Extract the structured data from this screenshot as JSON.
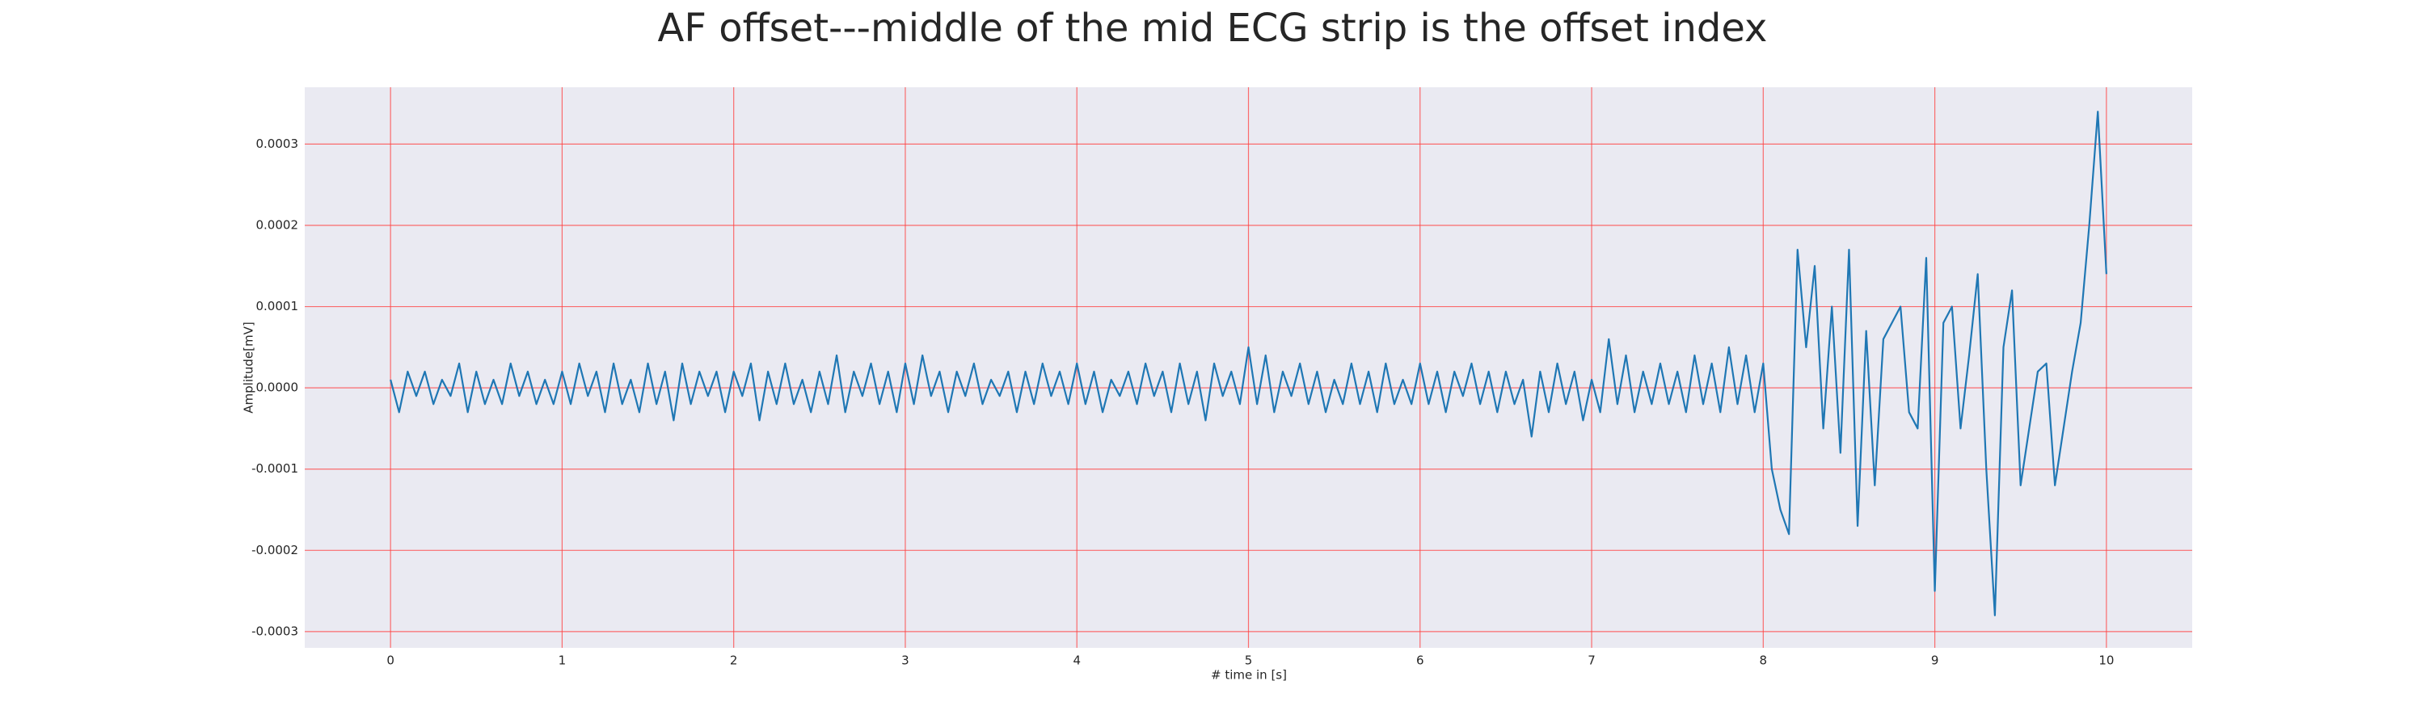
{
  "chart_data": {
    "type": "line",
    "title": "AF offset---middle of the mid ECG strip is the offset index",
    "xlabel": "# time in [s]",
    "ylabel": "Amplitude[mV]",
    "xlim": [
      -0.5,
      10.5
    ],
    "ylim": [
      -0.00032,
      0.00037
    ],
    "xticks": [
      0,
      1,
      2,
      3,
      4,
      5,
      6,
      7,
      8,
      9,
      10
    ],
    "yticks": [
      {
        "value": -0.0003,
        "label": "-0.0003"
      },
      {
        "value": -0.0002,
        "label": "-0.0002"
      },
      {
        "value": -0.0001,
        "label": "-0.0001"
      },
      {
        "value": 0,
        "label": "0.0000"
      },
      {
        "value": 0.0001,
        "label": "0.0001"
      },
      {
        "value": 0.0002,
        "label": "0.0002"
      },
      {
        "value": 0.0003,
        "label": "0.0003"
      }
    ],
    "grid": true,
    "grid_color": "#ff4040",
    "background": "#eaeaf2",
    "x": [
      0,
      0.05,
      0.1,
      0.15,
      0.2,
      0.25,
      0.3,
      0.35,
      0.4,
      0.45,
      0.5,
      0.55,
      0.6,
      0.65,
      0.7,
      0.75,
      0.8,
      0.85,
      0.9,
      0.95,
      1,
      1.05,
      1.1,
      1.15,
      1.2,
      1.25,
      1.3,
      1.35,
      1.4,
      1.45,
      1.5,
      1.55,
      1.6,
      1.65,
      1.7,
      1.75,
      1.8,
      1.85,
      1.9,
      1.95,
      2,
      2.05,
      2.1,
      2.15,
      2.2,
      2.25,
      2.3,
      2.35,
      2.4,
      2.45,
      2.5,
      2.55,
      2.6,
      2.65,
      2.7,
      2.75,
      2.8,
      2.85,
      2.9,
      2.95,
      3,
      3.05,
      3.1,
      3.15,
      3.2,
      3.25,
      3.3,
      3.35,
      3.4,
      3.45,
      3.5,
      3.55,
      3.6,
      3.65,
      3.7,
      3.75,
      3.8,
      3.85,
      3.9,
      3.95,
      4,
      4.05,
      4.1,
      4.15,
      4.2,
      4.25,
      4.3,
      4.35,
      4.4,
      4.45,
      4.5,
      4.55,
      4.6,
      4.65,
      4.7,
      4.75,
      4.8,
      4.85,
      4.9,
      4.95,
      5,
      5.05,
      5.1,
      5.15,
      5.2,
      5.25,
      5.3,
      5.35,
      5.4,
      5.45,
      5.5,
      5.55,
      5.6,
      5.65,
      5.7,
      5.75,
      5.8,
      5.85,
      5.9,
      5.95,
      6,
      6.05,
      6.1,
      6.15,
      6.2,
      6.25,
      6.3,
      6.35,
      6.4,
      6.45,
      6.5,
      6.55,
      6.6,
      6.65,
      6.7,
      6.75,
      6.8,
      6.85,
      6.9,
      6.95,
      7,
      7.05,
      7.1,
      7.15,
      7.2,
      7.25,
      7.3,
      7.35,
      7.4,
      7.45,
      7.5,
      7.55,
      7.6,
      7.65,
      7.7,
      7.75,
      7.8,
      7.85,
      7.9,
      7.95,
      8,
      8.05,
      8.1,
      8.15,
      8.2,
      8.25,
      8.3,
      8.35,
      8.4,
      8.45,
      8.5,
      8.55,
      8.6,
      8.65,
      8.7,
      8.75,
      8.8,
      8.85,
      8.9,
      8.95,
      9,
      9.05,
      9.1,
      9.15,
      9.2,
      9.25,
      9.3,
      9.35,
      9.4,
      9.45,
      9.5,
      9.55,
      9.6,
      9.65,
      9.7,
      9.75,
      9.8,
      9.85,
      9.9,
      9.95,
      10
    ],
    "series": [
      {
        "color": "#1f77b4",
        "values": [
          1e-05,
          -3e-05,
          2e-05,
          -1e-05,
          2e-05,
          -2e-05,
          1e-05,
          -1e-05,
          3e-05,
          -3e-05,
          2e-05,
          -2e-05,
          1e-05,
          -2e-05,
          3e-05,
          -1e-05,
          2e-05,
          -2e-05,
          1e-05,
          -2e-05,
          2e-05,
          -2e-05,
          3e-05,
          -1e-05,
          2e-05,
          -3e-05,
          3e-05,
          -2e-05,
          1e-05,
          -3e-05,
          3e-05,
          -2e-05,
          2e-05,
          -4e-05,
          3e-05,
          -2e-05,
          2e-05,
          -1e-05,
          2e-05,
          -3e-05,
          2e-05,
          -1e-05,
          3e-05,
          -4e-05,
          2e-05,
          -2e-05,
          3e-05,
          -2e-05,
          1e-05,
          -3e-05,
          2e-05,
          -2e-05,
          4e-05,
          -3e-05,
          2e-05,
          -1e-05,
          3e-05,
          -2e-05,
          2e-05,
          -3e-05,
          3e-05,
          -2e-05,
          4e-05,
          -1e-05,
          2e-05,
          -3e-05,
          2e-05,
          -1e-05,
          3e-05,
          -2e-05,
          1e-05,
          -1e-05,
          2e-05,
          -3e-05,
          2e-05,
          -2e-05,
          3e-05,
          -1e-05,
          2e-05,
          -2e-05,
          3e-05,
          -2e-05,
          2e-05,
          -3e-05,
          1e-05,
          -1e-05,
          2e-05,
          -2e-05,
          3e-05,
          -1e-05,
          2e-05,
          -3e-05,
          3e-05,
          -2e-05,
          2e-05,
          -4e-05,
          3e-05,
          -1e-05,
          2e-05,
          -2e-05,
          5e-05,
          -2e-05,
          4e-05,
          -3e-05,
          2e-05,
          -1e-05,
          3e-05,
          -2e-05,
          2e-05,
          -3e-05,
          1e-05,
          -2e-05,
          3e-05,
          -2e-05,
          2e-05,
          -3e-05,
          3e-05,
          -2e-05,
          1e-05,
          -2e-05,
          3e-05,
          -2e-05,
          2e-05,
          -3e-05,
          2e-05,
          -1e-05,
          3e-05,
          -2e-05,
          2e-05,
          -3e-05,
          2e-05,
          -2e-05,
          1e-05,
          -6e-05,
          2e-05,
          -3e-05,
          3e-05,
          -2e-05,
          2e-05,
          -4e-05,
          1e-05,
          -3e-05,
          6e-05,
          -2e-05,
          4e-05,
          -3e-05,
          2e-05,
          -2e-05,
          3e-05,
          -2e-05,
          2e-05,
          -3e-05,
          4e-05,
          -2e-05,
          3e-05,
          -3e-05,
          5e-05,
          -2e-05,
          4e-05,
          -3e-05,
          3e-05,
          -0.0001,
          -0.00015,
          -0.00018,
          0.00017,
          5e-05,
          0.00015,
          -5e-05,
          0.0001,
          -8e-05,
          0.00017,
          -0.00017,
          7e-05,
          -0.00012,
          6e-05,
          8e-05,
          0.0001,
          -3e-05,
          -5e-05,
          0.00016,
          -0.00025,
          8e-05,
          0.0001,
          -5e-05,
          4e-05,
          0.00014,
          -0.0001,
          -0.00028,
          5e-05,
          0.00012,
          -0.00012,
          -5e-05,
          2e-05,
          3e-05,
          -0.00012,
          -5e-05,
          2e-05,
          8e-05,
          0.0002,
          0.00034,
          0.00014
        ]
      }
    ]
  }
}
